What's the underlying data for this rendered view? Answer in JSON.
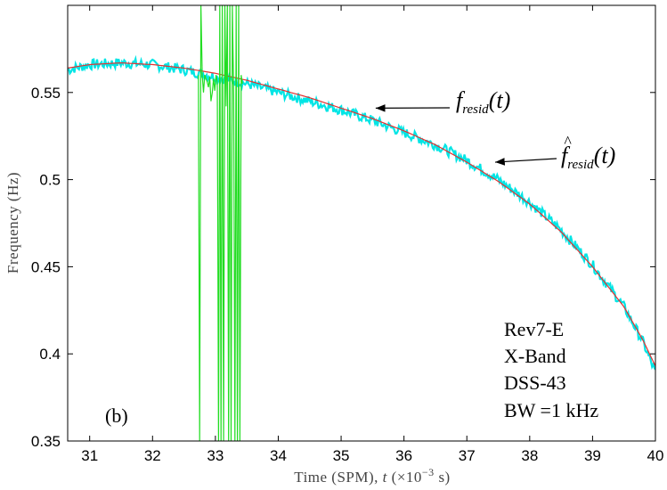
{
  "chart_data": {
    "type": "line",
    "xlabel": "Time (SPM), t (×10⁻³ s)",
    "xlabel_parts": {
      "prefix": "Time (SPM), ",
      "var": "t",
      "unit_open": " (×10",
      "exp": "−3",
      "unit_close": " s)"
    },
    "ylabel": "Frequency (Hz)",
    "xlim": [
      30.65,
      40.0
    ],
    "ylim": [
      0.35,
      0.6
    ],
    "xticks": [
      31,
      32,
      33,
      34,
      35,
      36,
      37,
      38,
      39,
      40
    ],
    "xtick_labels": [
      "31",
      "32",
      "33",
      "34",
      "35",
      "36",
      "37",
      "38",
      "39",
      "40"
    ],
    "yticks": [
      0.35,
      0.4,
      0.45,
      0.5,
      0.55
    ],
    "ytick_labels": [
      "0.35",
      "0.4",
      "0.45",
      "0.5",
      "0.55"
    ],
    "grid": false,
    "panel_label": "(b)",
    "info_lines": [
      "Rev7-E",
      "X-Band",
      "DSS-43",
      "BW =1 kHz"
    ],
    "series": [
      {
        "name": "f_resid(t)",
        "color": "#00e5e5",
        "x": [
          30.65,
          31.0,
          31.5,
          32.0,
          32.5,
          33.0,
          33.5,
          34.0,
          34.5,
          35.0,
          35.5,
          36.0,
          36.5,
          37.0,
          37.5,
          38.0,
          38.5,
          39.0,
          39.5,
          39.8,
          40.0
        ],
        "y": [
          0.563,
          0.566,
          0.567,
          0.566,
          0.563,
          0.559,
          0.555,
          0.55,
          0.545,
          0.54,
          0.534,
          0.527,
          0.52,
          0.511,
          0.5,
          0.487,
          0.471,
          0.451,
          0.427,
          0.407,
          0.389
        ]
      },
      {
        "name": "f̂_resid(t)",
        "color": "#e53030",
        "x": [
          30.65,
          31.0,
          31.5,
          32.0,
          32.5,
          33.0,
          33.5,
          34.0,
          34.5,
          35.0,
          35.5,
          36.0,
          36.5,
          37.0,
          37.5,
          38.0,
          38.5,
          39.0,
          39.5,
          39.8,
          40.0
        ],
        "y": [
          0.564,
          0.566,
          0.567,
          0.566,
          0.564,
          0.561,
          0.557,
          0.552,
          0.547,
          0.541,
          0.535,
          0.528,
          0.52,
          0.51,
          0.499,
          0.486,
          0.47,
          0.45,
          0.427,
          0.408,
          0.393
        ]
      },
      {
        "name": "spikes",
        "color": "#22dd22",
        "x": [
          32.73,
          32.75,
          32.77,
          32.79,
          32.81,
          32.83,
          32.85,
          32.87,
          32.89,
          32.91,
          32.93,
          32.95,
          32.97,
          32.99,
          33.01,
          33.03,
          33.05,
          33.07,
          33.09,
          33.11,
          33.13,
          33.15,
          33.17,
          33.19,
          33.21,
          33.23,
          33.25,
          33.27,
          33.29,
          33.31,
          33.33,
          33.35,
          33.37,
          33.39,
          33.41,
          33.43
        ],
        "y": [
          0.56,
          0.35,
          0.6,
          0.56,
          0.55,
          0.56,
          0.558,
          0.556,
          0.553,
          0.559,
          0.545,
          0.55,
          0.558,
          0.551,
          0.56,
          0.556,
          0.35,
          0.6,
          0.35,
          0.6,
          0.35,
          0.6,
          0.542,
          0.6,
          0.35,
          0.6,
          0.35,
          0.6,
          0.548,
          0.35,
          0.6,
          0.35,
          0.6,
          0.35,
          0.56,
          0.555
        ]
      }
    ],
    "annotations": [
      {
        "text": "f",
        "sub": "resid",
        "arg": "(t)",
        "hat": false,
        "arrow_to": [
          35.55,
          0.541
        ]
      },
      {
        "text": "f",
        "sub": "resid",
        "arg": "(t)",
        "hat": true,
        "arrow_to": [
          37.45,
          0.51
        ]
      }
    ]
  }
}
